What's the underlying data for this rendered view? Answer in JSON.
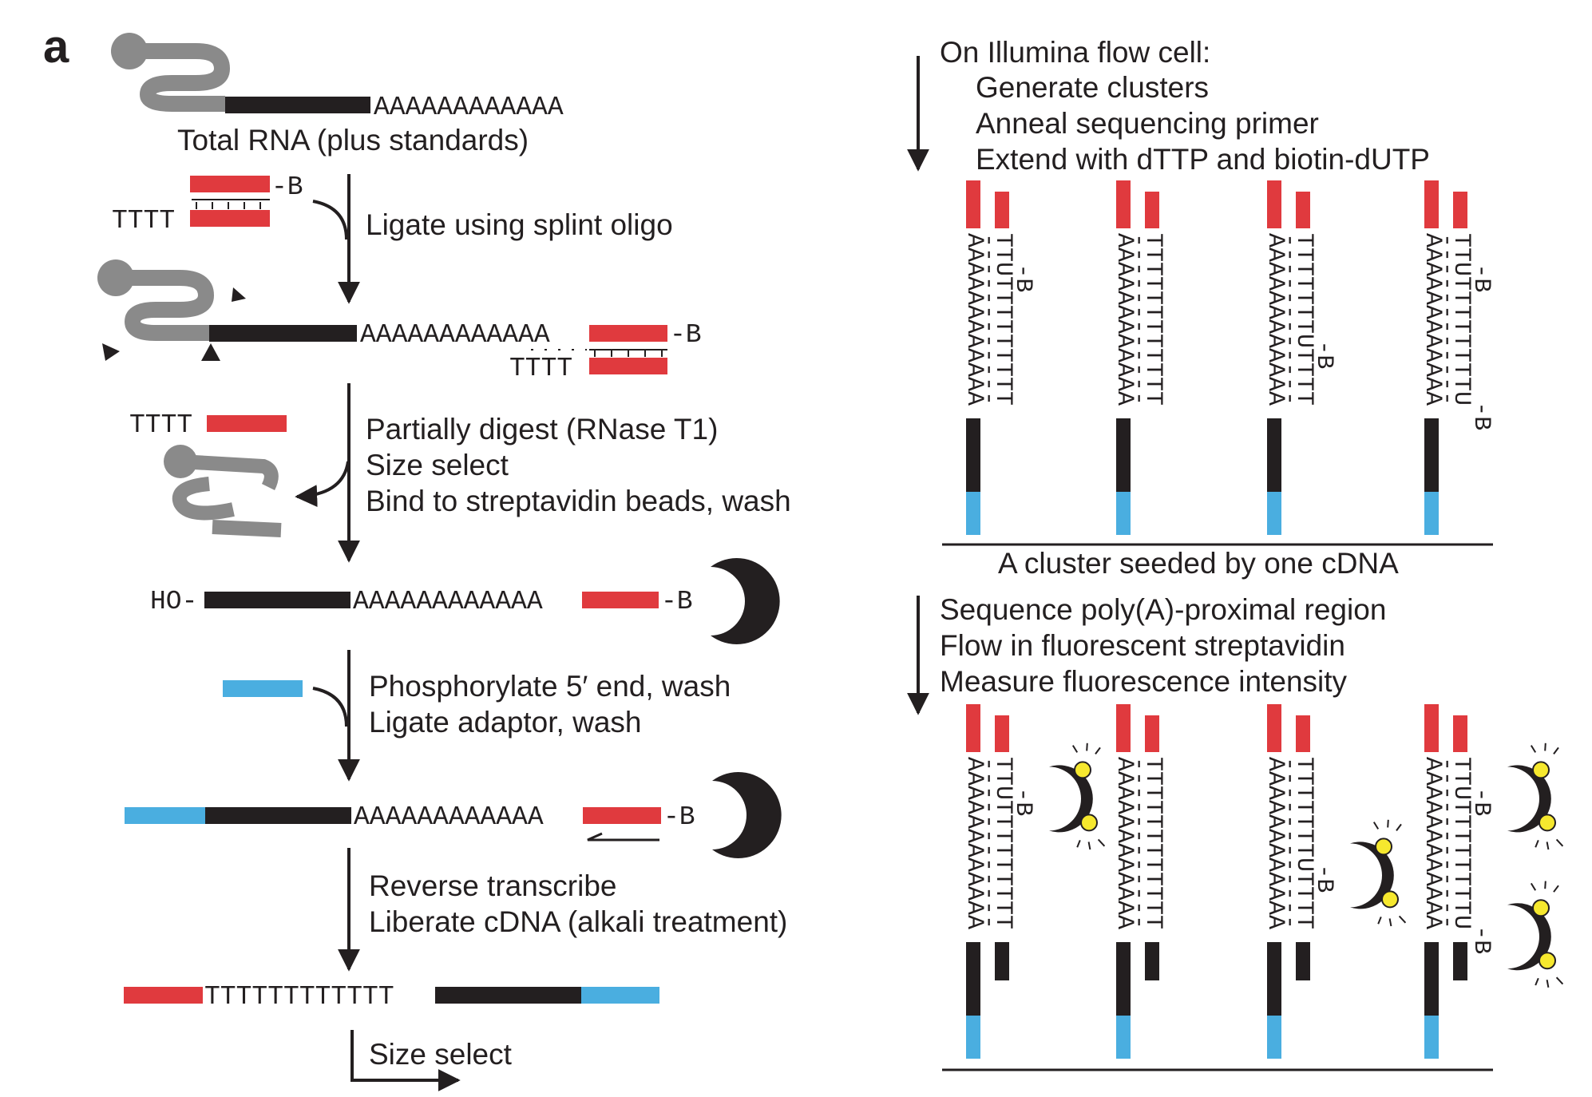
{
  "panel_label": "a",
  "left": {
    "total_rna": "Total RNA (plus standards)",
    "step_ligate": "Ligate using splint oligo",
    "step_digest": [
      "Partially digest (RNase T1)",
      "Size select",
      "Bind to streptavidin beads, wash"
    ],
    "step_phosphorylate": [
      "Phosphorylate 5′ end, wash",
      "Ligate adaptor, wash"
    ],
    "step_reverse": [
      "Reverse transcribe",
      "Liberate cDNA (alkali treatment)"
    ],
    "step_size_select": "Size select",
    "sequences": {
      "poly_a": "AAAAAAAAAAAA",
      "t4": "TTTT",
      "t12": "TTTTTTTTTTTT",
      "biotin": "-B",
      "ho": "HO-"
    }
  },
  "right": {
    "top_header": [
      "On Illumina flow cell:",
      "Generate clusters",
      "Anneal sequencing primer",
      "Extend with dTTP and biotin-dUTP"
    ],
    "cluster_caption": "A cluster seeded by one cDNA",
    "bottom_header": [
      "Sequence poly(A)-proximal region",
      "Flow in fluorescent streptavidin",
      "Measure fluorescence intensity"
    ],
    "strand_a": "AAAAAAAAAAAA",
    "strand_dashes": "------------",
    "strands_top": [
      "TTUTTTTTTTTT",
      "TTTTTTTTTTTT",
      "TTTTTTTUTTTT",
      "TTUTTTTTTTTU"
    ],
    "strands_bottom": [
      "TTUTTTTTTTTT",
      "TTTTTTTTTTTT",
      "TTTTTTTUTTTT",
      "TTUTTTTTTTTU"
    ],
    "biotin_label": "B"
  },
  "colors": {
    "red": "#e03a3e",
    "blue": "#4aaee0",
    "black": "#231f20",
    "gray": "#8a8a8a",
    "yellow": "#f6e82e"
  }
}
